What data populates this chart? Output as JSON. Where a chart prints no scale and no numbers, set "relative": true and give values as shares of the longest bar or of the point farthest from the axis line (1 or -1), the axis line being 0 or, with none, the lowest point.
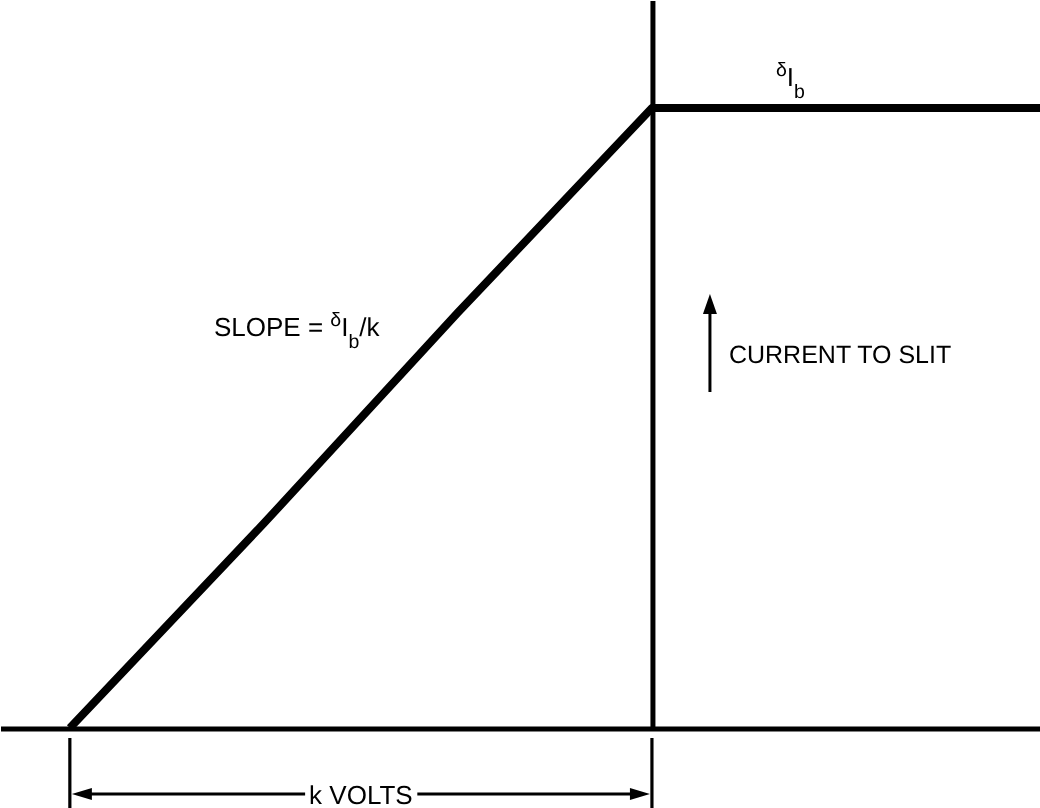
{
  "chart_data": {
    "type": "line",
    "relative": true,
    "categories": [
      null,
      null,
      null,
      null,
      null,
      null
    ],
    "values": [
      0,
      0.33,
      0.67,
      1,
      1,
      1
    ],
    "color": "#000000",
    "ylabel": "CURRENT TO SLIT",
    "annotations": [
      "SLOPE = $^{δ}$I$_{b}$/k",
      {
        "text": "$^{δ}$I$_{b}$",
        "y": 1
      },
      "k VOLTS"
    ],
    "grid": false,
    "marker": "none",
    "line_style": "solid"
  }
}
